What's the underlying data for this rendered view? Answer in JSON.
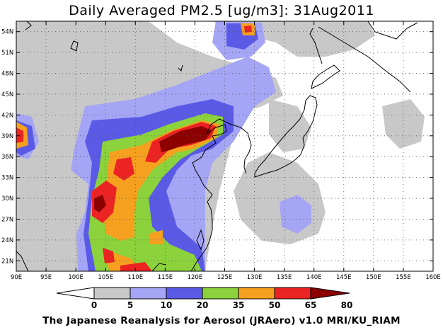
{
  "title": "Daily Averaged PM2.5 [ug/m3]: 31Aug2011",
  "footer": "The Japanese Reanalysis for Aerosol (JRAero) v1.0 MRI/KU_RIAM",
  "map": {
    "lon_range": [
      90,
      160
    ],
    "lat_range": [
      19.5,
      55.5
    ],
    "lon_ticks": [
      "90E",
      "95E",
      "100E",
      "105E",
      "110E",
      "115E",
      "120E",
      "125E",
      "130E",
      "135E",
      "140E",
      "145E",
      "150E",
      "155E",
      "160E"
    ],
    "lat_ticks": [
      "21N",
      "24N",
      "27N",
      "30N",
      "33N",
      "36N",
      "39N",
      "42N",
      "45N",
      "48N",
      "51N",
      "54N"
    ]
  },
  "colorbar": {
    "levels": [
      "0",
      "5",
      "10",
      "20",
      "35",
      "50",
      "65",
      "80"
    ],
    "colors": [
      "#ffffff",
      "#c8c8c8",
      "#a5a5f5",
      "#5a5ae6",
      "#8cd23c",
      "#f5a01e",
      "#eb2323",
      "#8c0000"
    ]
  },
  "colors": {
    "gray": "#c8c8c8",
    "light_blue": "#a5a5f5",
    "blue": "#5a5ae6",
    "green": "#8cd23c",
    "orange": "#f5a01e",
    "red": "#eb2323",
    "dark_red": "#8c0000"
  }
}
